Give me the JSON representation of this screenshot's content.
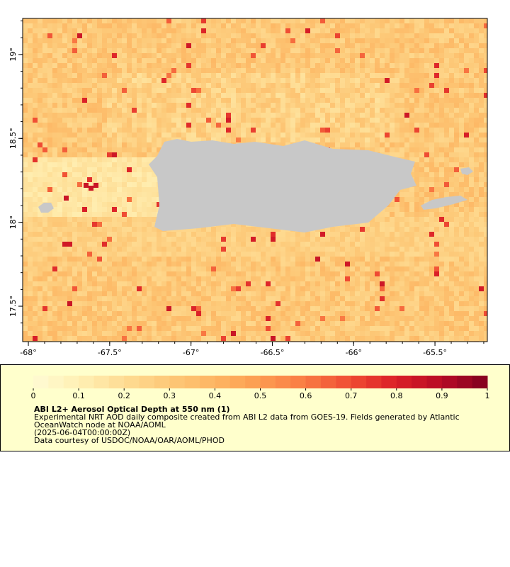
{
  "map": {
    "xlim": [
      -68.035,
      -65.178
    ],
    "ylim": [
      17.289,
      19.215
    ],
    "xticks": [
      {
        "value": -68,
        "label": "-68°"
      },
      {
        "value": -67.5,
        "label": "-67.5°"
      },
      {
        "value": -67,
        "label": "-67°"
      },
      {
        "value": -66.5,
        "label": "-66.5°"
      },
      {
        "value": -66,
        "label": "-66°"
      },
      {
        "value": -65.5,
        "label": "-65.5°"
      }
    ],
    "yticks": [
      {
        "value": 17.5,
        "label": "17.5°"
      },
      {
        "value": 18,
        "label": "18°"
      },
      {
        "value": 18.5,
        "label": "18.5°"
      },
      {
        "value": 19,
        "label": "19°"
      }
    ],
    "land_color": "#c8c8c8"
  },
  "colorbar": {
    "lim": [
      0,
      1
    ],
    "ticks": [
      0,
      0.1,
      0.2,
      0.3,
      0.4,
      0.5,
      0.6,
      0.7,
      0.8,
      0.9,
      1
    ],
    "colors": [
      "#fffbd4",
      "#fff0b4",
      "#fedc93",
      "#fdc877",
      "#fdb562",
      "#fc9c50",
      "#f97a43",
      "#ef4b33",
      "#da1f27",
      "#b70b25",
      "#80001f"
    ]
  },
  "legend": {
    "title": "ABI L2+ Aerosol Optical Depth at 550 nm (1)",
    "lines": [
      "Experimental NRT AOD daily composite created from ABI L2 data from GOES-19. Fields generated by Atlantic",
      "OceanWatch node at NOAA/AOML",
      "(2025-06-04T00:00:00Z)",
      "Data courtesy of USDOC/NOAA/OAR/AOML/PHOD"
    ]
  }
}
